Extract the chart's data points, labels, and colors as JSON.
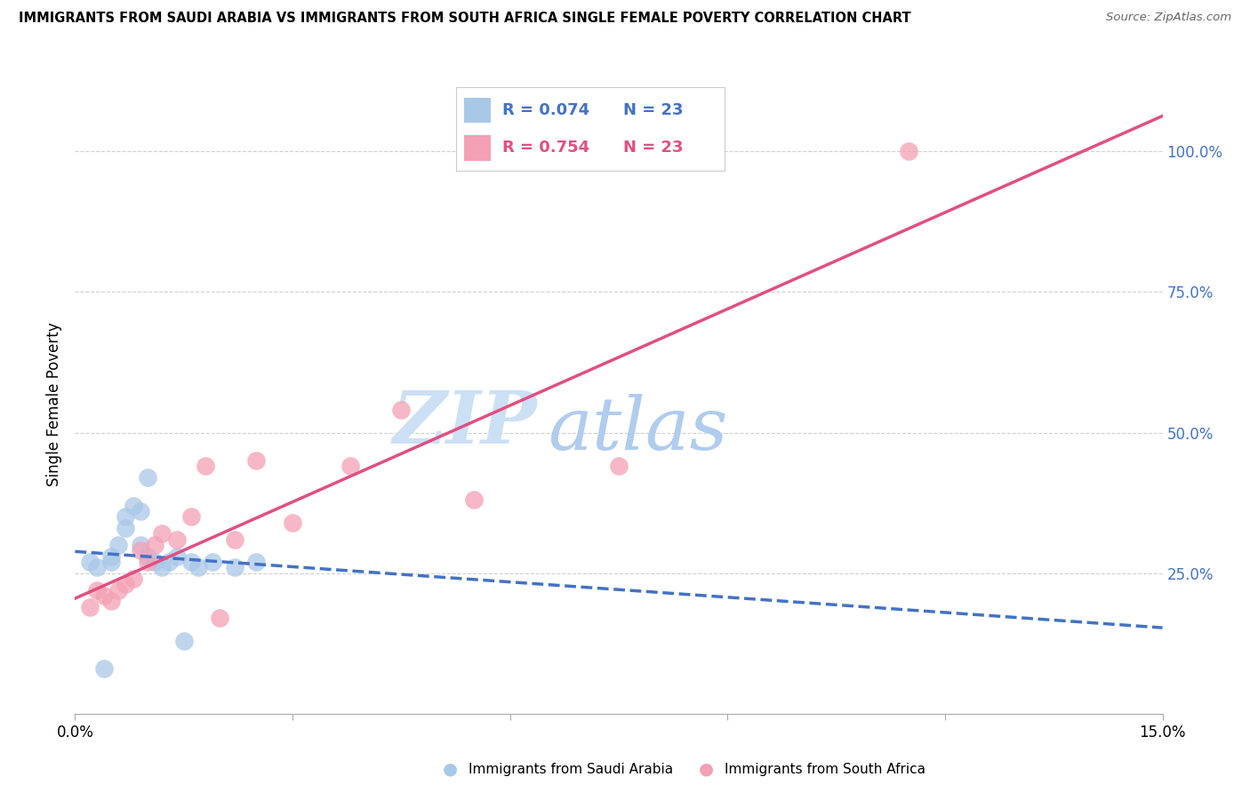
{
  "title": "IMMIGRANTS FROM SAUDI ARABIA VS IMMIGRANTS FROM SOUTH AFRICA SINGLE FEMALE POVERTY CORRELATION CHART",
  "source": "Source: ZipAtlas.com",
  "ylabel": "Single Female Poverty",
  "legend_label1": "Immigrants from Saudi Arabia",
  "legend_label2": "Immigrants from South Africa",
  "r1": "0.074",
  "n1": "23",
  "r2": "0.754",
  "n2": "23",
  "xmin": 0.0,
  "xmax": 0.15,
  "ymin": 0.0,
  "ymax": 1.1,
  "color_saudi": "#a8c8e8",
  "color_southafrica": "#f4a0b5",
  "trendline_saudi_color": "#4472c4",
  "trendline_southafrica_color": "#e05080",
  "saudi_x": [
    0.002,
    0.003,
    0.004,
    0.005,
    0.005,
    0.006,
    0.007,
    0.007,
    0.008,
    0.009,
    0.009,
    0.01,
    0.01,
    0.011,
    0.012,
    0.013,
    0.014,
    0.015,
    0.016,
    0.017,
    0.019,
    0.022,
    0.025
  ],
  "saudi_y": [
    0.27,
    0.26,
    0.08,
    0.27,
    0.28,
    0.3,
    0.33,
    0.35,
    0.37,
    0.36,
    0.3,
    0.28,
    0.42,
    0.27,
    0.26,
    0.27,
    0.28,
    0.13,
    0.27,
    0.26,
    0.27,
    0.26,
    0.27
  ],
  "southafrica_x": [
    0.002,
    0.003,
    0.004,
    0.005,
    0.006,
    0.007,
    0.008,
    0.009,
    0.01,
    0.011,
    0.012,
    0.014,
    0.016,
    0.018,
    0.02,
    0.022,
    0.025,
    0.03,
    0.038,
    0.045,
    0.055,
    0.075,
    0.115
  ],
  "southafrica_y": [
    0.19,
    0.22,
    0.21,
    0.2,
    0.22,
    0.23,
    0.24,
    0.29,
    0.27,
    0.3,
    0.32,
    0.31,
    0.35,
    0.44,
    0.17,
    0.31,
    0.45,
    0.34,
    0.44,
    0.54,
    0.38,
    0.44,
    1.0
  ],
  "ytick_positions": [
    0.25,
    0.5,
    0.75,
    1.0
  ],
  "ytick_labels": [
    "25.0%",
    "50.0%",
    "75.0%",
    "100.0%"
  ],
  "xtick_positions": [
    0.0,
    0.03,
    0.06,
    0.09,
    0.12,
    0.15
  ],
  "xtick_labels": [
    "0.0%",
    "",
    "",
    "",
    "",
    "15.0%"
  ]
}
